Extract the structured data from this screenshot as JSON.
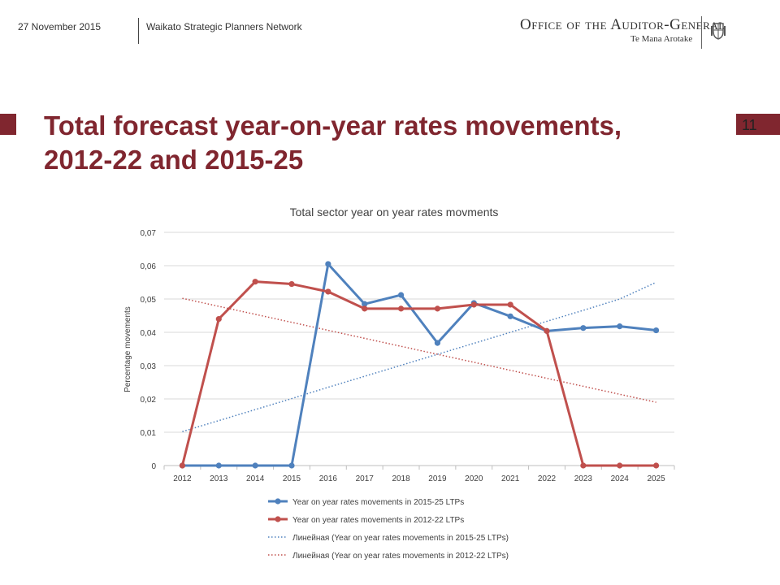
{
  "header": {
    "date": "27 November 2015",
    "network": "Waikato Strategic Planners Network",
    "logo_text": "Office of the Auditor-General",
    "logo_subtitle": "Te Mana Arotake",
    "crest_icon": "nz-coat-of-arms-icon"
  },
  "slide": {
    "number": "11",
    "title": "Total forecast year-on-year rates movements, 2012-22 and 2015-25",
    "accent_color": "#80262f"
  },
  "chart_data": {
    "type": "line",
    "title": "Total sector year on year rates movments",
    "xlabel": "",
    "ylabel": "Percentage movements",
    "x": [
      "2012",
      "2013",
      "2014",
      "2015",
      "2016",
      "2017",
      "2018",
      "2019",
      "2020",
      "2021",
      "2022",
      "2023",
      "2024",
      "2025"
    ],
    "ylim": [
      0,
      0.07
    ],
    "yticks": [
      0,
      0.01,
      0.02,
      0.03,
      0.04,
      0.05,
      0.06,
      0.07
    ],
    "ytick_labels": [
      "0",
      "0,01",
      "0,02",
      "0,03",
      "0,04",
      "0,05",
      "0,06",
      "0,07"
    ],
    "grid": true,
    "legend_position": "bottom",
    "series": [
      {
        "name": "Year on year rates movements in 2015-25 LTPs",
        "color": "#4f81bd",
        "style": "line-marker",
        "values": [
          0,
          0,
          0,
          0,
          0.0605,
          0.0485,
          0.0512,
          0.0368,
          0.0488,
          0.0448,
          0.0404,
          0.0413,
          0.0418,
          0.0406
        ]
      },
      {
        "name": "Year on year rates movements in 2012-22 LTPs",
        "color": "#c0504d",
        "style": "line-marker",
        "values": [
          0,
          0.044,
          0.0552,
          0.0545,
          0.0522,
          0.0471,
          0.0471,
          0.0471,
          0.0483,
          0.0483,
          0.0404,
          0,
          0,
          0
        ]
      },
      {
        "name": "Линейная (Year on year rates movements in 2015-25 LTPs)",
        "color": "#4f81bd",
        "style": "dotted",
        "values": [
          0.0102,
          0.0135,
          0.0168,
          0.0201,
          0.0235,
          0.0268,
          0.0301,
          0.0334,
          0.0367,
          0.04,
          0.0433,
          0.0466,
          0.05,
          0.055
        ]
      },
      {
        "name": "Линейная (Year on year rates movements in 2012-22 LTPs)",
        "color": "#c0504d",
        "style": "dotted",
        "values": [
          0.0502,
          0.0478,
          0.0454,
          0.043,
          0.0406,
          0.0382,
          0.0358,
          0.0334,
          0.031,
          0.0286,
          0.0262,
          0.0238,
          0.0214,
          0.019
        ]
      }
    ]
  }
}
